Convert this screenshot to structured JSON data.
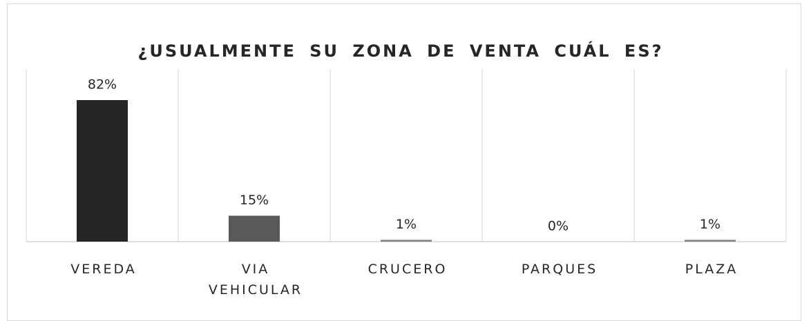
{
  "chart_data": {
    "type": "bar",
    "title": "¿USUALMENTE SU ZONA DE VENTA CUÁL ES?",
    "categories": [
      "VEREDA",
      "VIA VEHICULAR",
      "CRUCERO",
      "PARQUES",
      "PLAZA"
    ],
    "values": [
      82,
      15,
      1,
      0,
      1
    ],
    "value_labels": [
      "82%",
      "15%",
      "1%",
      "0%",
      "1%"
    ],
    "colors": [
      "#262626",
      "#595959",
      "#7f7f7f",
      "#7f7f7f",
      "#7f7f7f"
    ],
    "ylim": [
      0,
      100
    ]
  }
}
